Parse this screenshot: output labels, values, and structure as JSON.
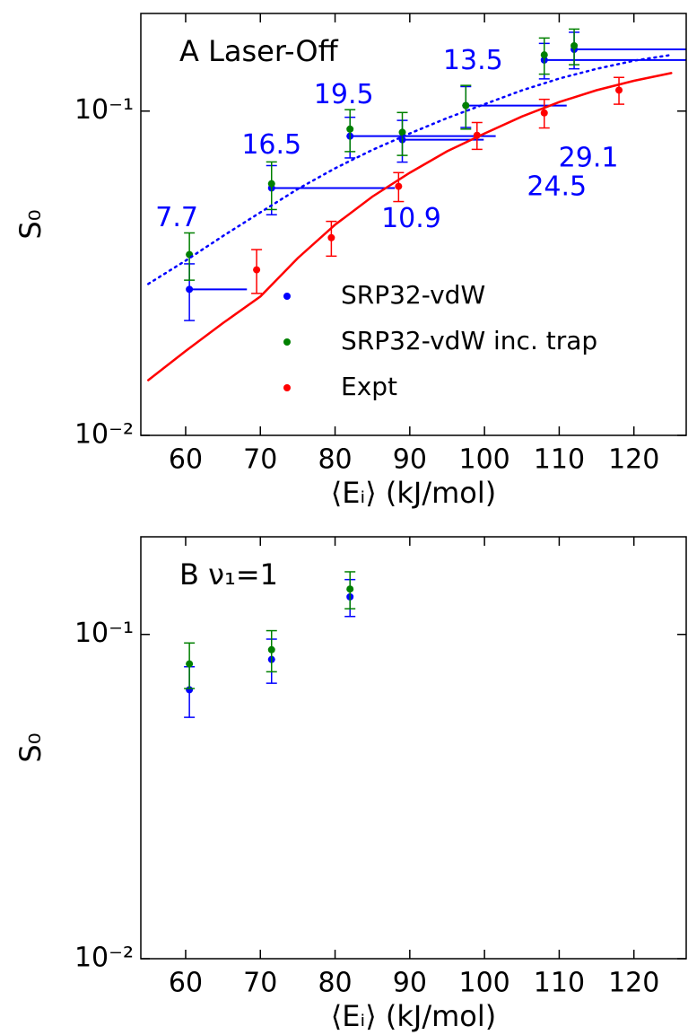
{
  "chart_data": [
    {
      "type": "scatter",
      "title": "A Laser-Off",
      "xlabel": "⟨Eᵢ⟩ (kJ/mol)",
      "ylabel": "S₀",
      "xlim": [
        54,
        127
      ],
      "ylim": [
        0.01,
        0.2
      ],
      "log_y": true,
      "xticks": [
        60,
        70,
        80,
        90,
        100,
        110,
        120
      ],
      "yticks": [
        {
          "value": 0.01,
          "label": "10⁻²"
        },
        {
          "value": 0.1,
          "label": "10⁻¹"
        }
      ],
      "legend": "center right",
      "series": [
        {
          "name": "SRP32-vdW",
          "color": "#0000ff",
          "x": [
            60.5,
            71.5,
            82,
            89,
            97.5,
            108,
            112
          ],
          "values": [
            0.0282,
            0.0579,
            0.0837,
            0.0816,
            0.104,
            0.1437,
            0.155
          ],
          "errors": [
            0.0056,
            0.01,
            0.012,
            0.012,
            0.015,
            0.018,
            0.02
          ],
          "spread": [
            7.7,
            16.5,
            19.5,
            10.9,
            13.5,
            24.5,
            29.1
          ]
        },
        {
          "name": "SRP32-vdW inc. trap",
          "color": "#008000",
          "x": [
            60.5,
            71.5,
            82,
            89,
            97.5,
            108,
            112
          ],
          "values": [
            0.0361,
            0.0597,
            0.088,
            0.086,
            0.104,
            0.149,
            0.159
          ],
          "errors": [
            0.006,
            0.01,
            0.013,
            0.013,
            0.016,
            0.019,
            0.02
          ]
        },
        {
          "name": "Expt",
          "color": "#ff0000",
          "x": [
            69.5,
            79.5,
            88.5,
            99,
            108,
            118
          ],
          "values": [
            0.0324,
            0.0407,
            0.0586,
            0.0842,
            0.0987,
            0.116
          ],
          "errors": [
            0.005,
            0.005,
            0.006,
            0.008,
            0.01,
            0.011
          ]
        },
        {
          "color": "#ff0000",
          "style": "solid",
          "x": [
            55,
            60,
            65,
            70,
            75,
            80,
            85,
            90,
            95,
            100,
            105,
            110,
            115,
            120,
            125
          ],
          "values": [
            0.0148,
            0.0182,
            0.0222,
            0.0268,
            0.0352,
            0.0446,
            0.0545,
            0.0645,
            0.0752,
            0.0853,
            0.0962,
            0.1066,
            0.116,
            0.124,
            0.131
          ]
        },
        {
          "color": "#0000ff",
          "style": "dotted",
          "x": [
            55,
            60,
            65,
            70,
            75,
            80,
            85,
            90,
            95,
            100,
            105,
            110,
            115,
            120,
            125
          ],
          "values": [
            0.0293,
            0.0346,
            0.0412,
            0.0487,
            0.0575,
            0.0666,
            0.0759,
            0.0853,
            0.0952,
            0.105,
            0.1158,
            0.126,
            0.135,
            0.143,
            0.149
          ]
        }
      ]
    },
    {
      "type": "scatter",
      "title": "B ν₁=1",
      "xlabel": "⟨Eᵢ⟩ (kJ/mol)",
      "ylabel": "S₀",
      "xlim": [
        54,
        127
      ],
      "ylim": [
        0.01,
        0.2
      ],
      "log_y": true,
      "xticks": [
        60,
        70,
        80,
        90,
        100,
        110,
        120
      ],
      "yticks": [
        {
          "value": 0.01,
          "label": "10⁻²"
        },
        {
          "value": 0.1,
          "label": "10⁻¹"
        }
      ],
      "series": [
        {
          "color": "#0000ff",
          "x": [
            60.5,
            71.5,
            82
          ],
          "values": [
            0.0675,
            0.0837,
            0.1306
          ],
          "errors": [
            0.012,
            0.013,
            0.017
          ]
        },
        {
          "color": "#008000",
          "x": [
            60.5,
            71.5,
            82
          ],
          "values": [
            0.0811,
            0.0897,
            0.138
          ],
          "errors": [
            0.013,
            0.013,
            0.018
          ]
        }
      ]
    }
  ]
}
